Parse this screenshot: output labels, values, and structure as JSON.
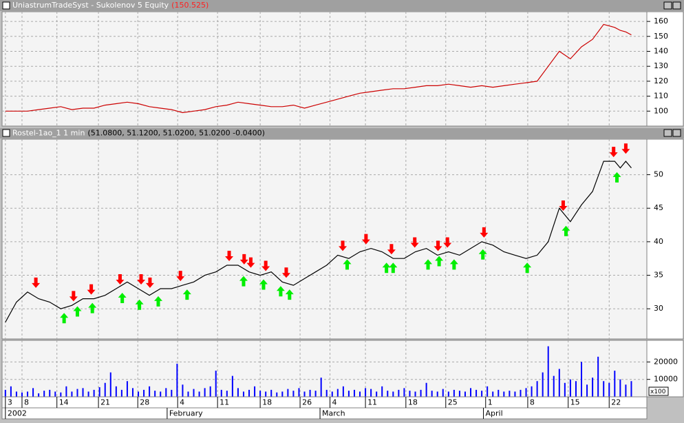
{
  "chart_data": [
    {
      "type": "line",
      "title": "UniastrumTradeSyst - Sukolenov 5 Equity",
      "subtitle": "(150.525)",
      "color": "#cc0000",
      "x": [
        0,
        2,
        4,
        6,
        8,
        10,
        12,
        14,
        16,
        18,
        20,
        22,
        24,
        26,
        28,
        30,
        32,
        34,
        36,
        38,
        40,
        42,
        44,
        46,
        48,
        50,
        52,
        54,
        56,
        58,
        60,
        62,
        64,
        66,
        68,
        70,
        72,
        74,
        76,
        78,
        80,
        82,
        84,
        86,
        88,
        90,
        92,
        94,
        96,
        98,
        100,
        102,
        104,
        106,
        108,
        110,
        111,
        112,
        113
      ],
      "values": [
        100,
        100,
        100,
        101,
        102,
        103,
        101,
        102,
        102,
        104,
        105,
        106,
        105,
        103,
        102,
        101,
        99,
        100,
        101,
        103,
        104,
        106,
        105,
        104,
        103,
        103,
        104,
        102,
        104,
        106,
        108,
        110,
        112,
        113,
        114,
        115,
        115,
        116,
        117,
        117,
        118,
        117,
        116,
        117,
        116,
        117,
        118,
        119,
        120,
        130,
        140,
        135,
        143,
        148,
        158,
        156,
        154,
        153,
        151
      ],
      "xlim": [
        -0.6,
        115.8
      ],
      "ylim": [
        90,
        166.5
      ],
      "yticks": [
        100,
        110,
        120,
        130,
        140,
        150,
        160
      ],
      "grid": true
    },
    {
      "type": "line",
      "title": "Rostel-1ao_1 1 min",
      "subtitle": "(51.0800, 51.1200, 51.0200, 51.0200 -0.0400)",
      "color": "#000000",
      "x": [
        0,
        2,
        4,
        6,
        8,
        10,
        12,
        14,
        16,
        18,
        20,
        22,
        24,
        26,
        28,
        30,
        32,
        34,
        36,
        38,
        40,
        42,
        44,
        46,
        48,
        50,
        52,
        54,
        56,
        58,
        60,
        62,
        64,
        66,
        68,
        70,
        72,
        74,
        76,
        78,
        80,
        82,
        84,
        86,
        88,
        90,
        92,
        94,
        96,
        98,
        100,
        102,
        104,
        106,
        108,
        110,
        111,
        112,
        113
      ],
      "values": [
        28,
        31,
        32.5,
        31.5,
        31,
        30,
        30.5,
        31.5,
        31.5,
        32,
        33,
        34,
        33,
        32,
        33,
        33,
        33.5,
        34,
        35,
        35.5,
        36.5,
        36.5,
        35.5,
        35,
        35.5,
        34,
        33.5,
        34.5,
        35.5,
        36.5,
        38,
        37.5,
        38.5,
        39,
        38.5,
        37.5,
        37.5,
        38.5,
        39,
        38,
        38.5,
        38,
        39,
        40,
        39.5,
        38.5,
        38,
        37.5,
        38,
        40,
        45,
        43,
        45.5,
        47.5,
        52,
        52,
        51,
        52,
        51
      ],
      "sell_arrows": {
        "color": "#ff0000",
        "x": [
          5.5,
          12.3,
          15.5,
          20.7,
          24.5,
          26.1,
          31.6,
          40.4,
          43.1,
          44.3,
          47,
          50.7,
          60.9,
          65.1,
          69.7,
          73.9,
          78.1,
          79.8,
          86.4,
          100.7,
          109.8,
          112
        ],
        "values": [
          32.5,
          30.5,
          31.5,
          33,
          33,
          32.5,
          33.5,
          36.5,
          36,
          35.5,
          35,
          34,
          38,
          39,
          37.5,
          38.5,
          38,
          38.5,
          40,
          44,
          52,
          52.5
        ]
      },
      "buy_arrows": {
        "color": "#00ee00",
        "x": [
          10.6,
          13,
          15.7,
          21.1,
          24.2,
          27.6,
          32.8,
          43,
          46.6,
          49.7,
          51.3,
          61.7,
          68.8,
          70,
          76.3,
          78.3,
          81,
          86.2,
          94.2,
          101.2,
          110.4
        ],
        "values": [
          30,
          31,
          31.5,
          33,
          32,
          32.5,
          33.5,
          35.5,
          35,
          34,
          33.5,
          38,
          37.5,
          37.5,
          38,
          38.5,
          38,
          39.5,
          37.5,
          43,
          51
        ]
      },
      "xlim": [
        -0.6,
        115.8
      ],
      "ylim": [
        25.5,
        55.3
      ],
      "yticks": [
        30,
        35,
        40,
        45,
        50
      ],
      "grid": true
    },
    {
      "type": "bar",
      "color": "#0000ff",
      "scale_label": "x100",
      "x": [
        0,
        1,
        2,
        3,
        4,
        5,
        6,
        7,
        8,
        9,
        10,
        11,
        12,
        13,
        14,
        15,
        16,
        17,
        18,
        19,
        20,
        21,
        22,
        23,
        24,
        25,
        26,
        27,
        28,
        29,
        30,
        31,
        32,
        33,
        34,
        35,
        36,
        37,
        38,
        39,
        40,
        41,
        42,
        43,
        44,
        45,
        46,
        47,
        48,
        49,
        50,
        51,
        52,
        53,
        54,
        55,
        56,
        57,
        58,
        59,
        60,
        61,
        62,
        63,
        64,
        65,
        66,
        67,
        68,
        69,
        70,
        71,
        72,
        73,
        74,
        75,
        76,
        77,
        78,
        79,
        80,
        81,
        82,
        83,
        84,
        85,
        86,
        87,
        88,
        89,
        90,
        91,
        92,
        93,
        94,
        95,
        96,
        97,
        98,
        99,
        100,
        101,
        102,
        103,
        104,
        105,
        106,
        107,
        108,
        109,
        110,
        111,
        112,
        113
      ],
      "values": [
        4000,
        6000,
        3000,
        2500,
        3000,
        5000,
        2000,
        3500,
        4000,
        3000,
        2500,
        6000,
        3000,
        4500,
        5000,
        3000,
        4000,
        5500,
        8000,
        14000,
        6000,
        4000,
        9000,
        5000,
        3000,
        4000,
        6000,
        3500,
        3000,
        5000,
        4000,
        19000,
        7000,
        3000,
        4500,
        3000,
        5000,
        6000,
        15000,
        4000,
        3500,
        12000,
        5000,
        3000,
        4000,
        6000,
        3500,
        3000,
        4000,
        2500,
        3000,
        4500,
        3500,
        5000,
        3000,
        4000,
        3500,
        11000,
        4000,
        3000,
        4500,
        6000,
        3500,
        4000,
        3000,
        5000,
        4500,
        3000,
        6000,
        3500,
        3000,
        4000,
        5000,
        3500,
        3000,
        4000,
        8000,
        3500,
        3000,
        4500,
        3000,
        4000,
        3500,
        3000,
        5000,
        4000,
        3500,
        6000,
        3000,
        4000,
        3000,
        3500,
        3000,
        4000,
        5000,
        6000,
        9000,
        14000,
        29000,
        12000,
        16000,
        8000,
        10000,
        9000,
        20000,
        7000,
        11000,
        23000,
        9000,
        8000,
        15000,
        10000,
        7000,
        9000
      ],
      "xlim": [
        -0.6,
        115.8
      ],
      "ylim": [
        0,
        32400
      ],
      "yticks": [
        10000,
        20000
      ],
      "grid": true,
      "xticks": [
        {
          "value": 0,
          "label": "3"
        },
        {
          "value": 3,
          "label": "8"
        },
        {
          "value": 9.3,
          "label": "14"
        },
        {
          "value": 16.8,
          "label": "21"
        },
        {
          "value": 23.9,
          "label": "28"
        },
        {
          "value": 31.1,
          "label": "4"
        },
        {
          "value": 38.3,
          "label": "11"
        },
        {
          "value": 46,
          "label": "18"
        },
        {
          "value": 53.2,
          "label": "26"
        },
        {
          "value": 58.6,
          "label": "4"
        },
        {
          "value": 65,
          "label": "11"
        },
        {
          "value": 72.3,
          "label": "18"
        },
        {
          "value": 79.5,
          "label": "25"
        },
        {
          "value": 86.7,
          "label": "1"
        },
        {
          "value": 94.3,
          "label": "8"
        },
        {
          "value": 101.6,
          "label": "15"
        },
        {
          "value": 109,
          "label": "22"
        }
      ],
      "month_ticks": [
        {
          "value": 0,
          "label": "2002"
        },
        {
          "value": 29.2,
          "label": "February"
        },
        {
          "value": 56.8,
          "label": "March"
        },
        {
          "value": 86.3,
          "label": "April"
        }
      ]
    }
  ]
}
